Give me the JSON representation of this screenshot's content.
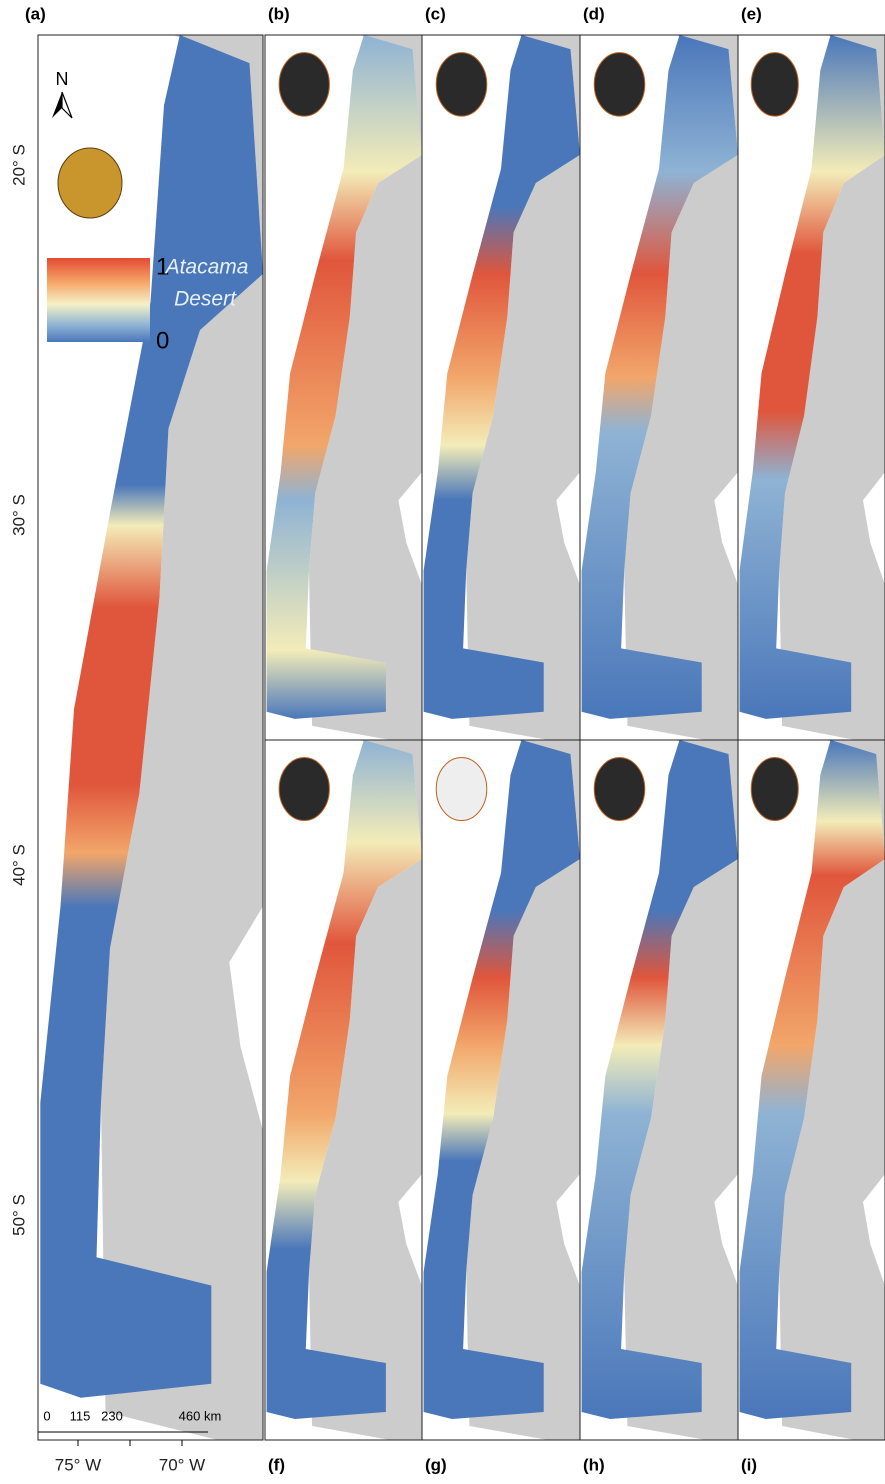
{
  "panel_labels": [
    "(a)",
    "(b)",
    "(c)",
    "(d)",
    "(e)",
    "(f)",
    "(g)",
    "(h)",
    "(i)"
  ],
  "north": "N",
  "legend": {
    "max": "1",
    "min": "0"
  },
  "annotation": [
    "Atacama",
    "Desert"
  ],
  "latitudes": [
    "20° S",
    "30° S",
    "40° S",
    "50° S"
  ],
  "longitudes": [
    "75° W",
    "70° W"
  ],
  "scale_bar": [
    "0",
    "115",
    "230",
    "460 km"
  ]
}
